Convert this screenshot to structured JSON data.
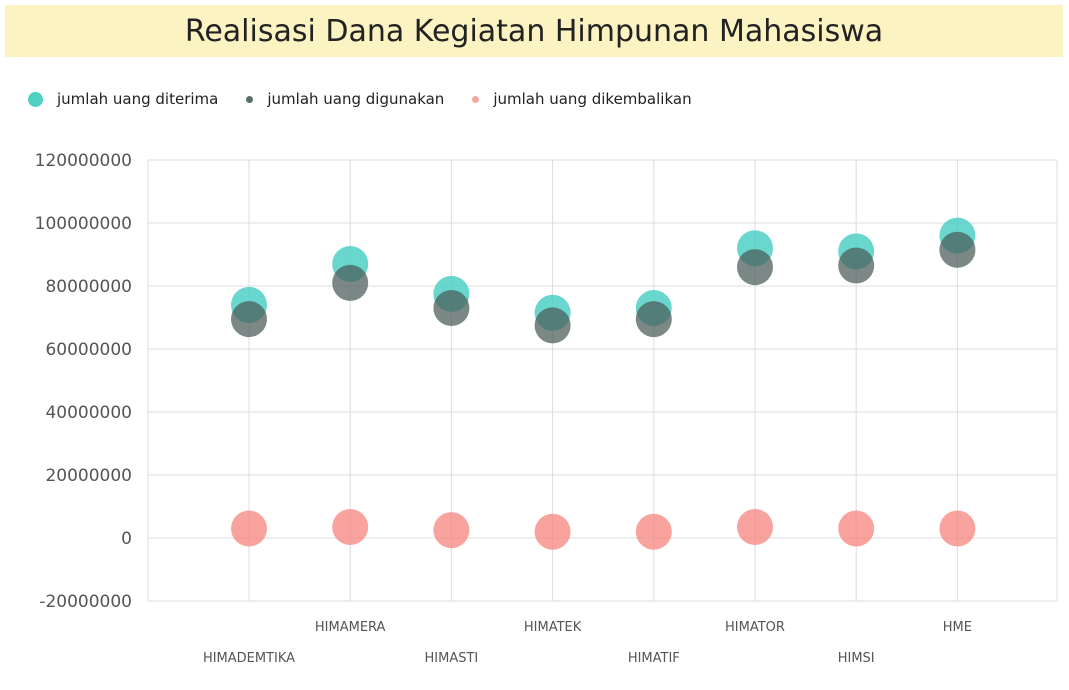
{
  "chart_data": {
    "type": "scatter",
    "title": "Realisasi Dana Kegiatan Himpunan Mahasiswa",
    "categories": [
      "HIMADEMTIKA",
      "HIMAMERA",
      "HIMASTI",
      "HIMATEK",
      "HIMATIF",
      "HIMATOR",
      "HIMSI",
      "HME"
    ],
    "series": [
      {
        "name": "jumlah uang diterima",
        "color": "#4fd0c4",
        "values": [
          74000000,
          87000000,
          77500000,
          71500000,
          73000000,
          92000000,
          91000000,
          96000000
        ]
      },
      {
        "name": "jumlah uang digunakan",
        "color": "#5a6e6c",
        "values": [
          69500000,
          81000000,
          73000000,
          67500000,
          69500000,
          86000000,
          86500000,
          91500000
        ]
      },
      {
        "name": "jumlah uang dikembalikan",
        "color": "#f7847f",
        "values": [
          3000000,
          3500000,
          2500000,
          2000000,
          2000000,
          3500000,
          3000000,
          3000000
        ]
      }
    ],
    "ylim": [
      -20000000,
      120000000
    ],
    "yticks": [
      "120000000",
      "100000000",
      "80000000",
      "60000000",
      "40000000",
      "20000000",
      "0",
      "-20000000"
    ],
    "xlabel": "",
    "ylabel": "",
    "legend_position": "top-left",
    "grid": true
  }
}
